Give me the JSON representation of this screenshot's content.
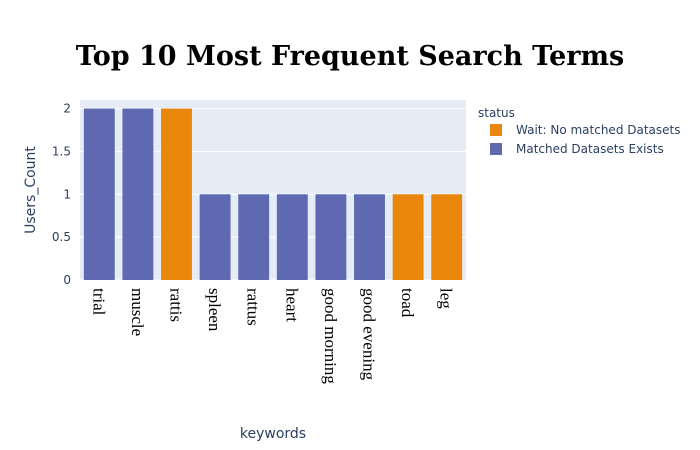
{
  "chart_data": {
    "type": "bar",
    "title": "Top 10 Most Frequent Search Terms",
    "xlabel": "keywords",
    "ylabel": "Users_Count",
    "ylim": [
      0,
      2.1
    ],
    "yticks": [
      0,
      0.5,
      1,
      1.5,
      2
    ],
    "ytick_labels": [
      "0",
      "0.5",
      "1",
      "1.5",
      "2"
    ],
    "grid": true,
    "legend_title": "status",
    "legend_placement": "top-right",
    "series": [
      {
        "name": "Wait: No matched Datasets",
        "color": "#e8870b"
      },
      {
        "name": "Matched Datasets Exists",
        "color": "#5e69b2"
      }
    ],
    "categories": [
      "trial",
      "muscle",
      "rattis",
      "spleen",
      "rattus",
      "heart",
      "good morning",
      "good evening",
      "toad",
      "leg"
    ],
    "values": [
      2,
      2,
      2,
      1,
      1,
      1,
      1,
      1,
      1,
      1
    ],
    "bar_series": [
      1,
      1,
      0,
      1,
      1,
      1,
      1,
      1,
      0,
      0
    ],
    "plot_background": "#e5ecf6"
  }
}
